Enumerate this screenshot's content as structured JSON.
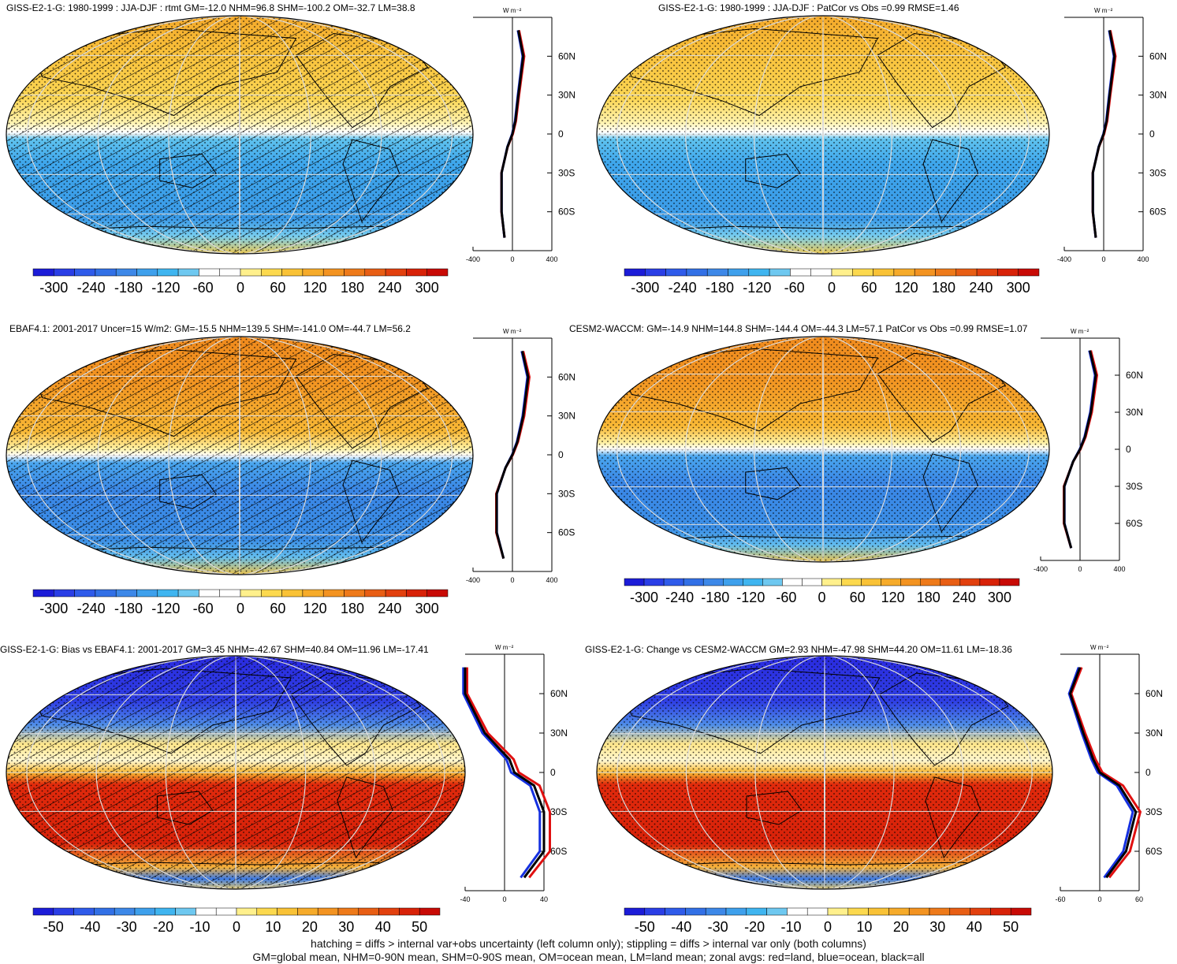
{
  "panels": [
    {
      "id": "p1",
      "title": "GISS-E2-1-G: 1980-1999 : JJA-DJF : rtmt GM=-12.0 NHM=96.8 SHM=-100.2 OM=-32.7 LM=38.8",
      "scheme": "rtmt",
      "hatch": true
    },
    {
      "id": "p2",
      "title": "GISS-E2-1-G: 1980-1999 : JJA-DJF : PatCor vs Obs =0.99 RMSE=1.46",
      "scheme": "rtmt",
      "hatch": false
    },
    {
      "id": "p3",
      "title": "EBAF4.1: 2001-2017 Uncer=15 W/m2: GM=-15.5 NHM=139.5 SHM=-141.0 OM=-44.7 LM=56.2",
      "scheme": "rtmt",
      "hatch": true
    },
    {
      "id": "p4",
      "title": "CESM2-WACCM: GM=-14.9 NHM=144.8 SHM=-144.4 OM=-44.3 LM=57.1 PatCor vs Obs =0.99 RMSE=1.07",
      "scheme": "rtmt",
      "hatch": false
    },
    {
      "id": "p5",
      "title": "GISS-E2-1-G: Bias vs EBAF4.1: 2001-2017 GM=3.45 NHM=-42.67 SHM=40.84 OM=11.96 LM=-17.41",
      "scheme": "bias",
      "hatch": true
    },
    {
      "id": "p6",
      "title": "GISS-E2-1-G: Change vs CESM2-WACCM GM=2.93 NHM=-47.98 SHM=44.20 OM=11.61 LM=-18.36",
      "scheme": "bias",
      "hatch": false
    }
  ],
  "units_label": "W m⁻²",
  "lat_ticks": [
    "60N",
    "30N",
    "0",
    "30S",
    "60S"
  ],
  "colorbars": {
    "rtmt": {
      "labels": [
        "-300",
        "-240",
        "-180",
        "-120",
        "-60",
        "0",
        "60",
        "120",
        "180",
        "240",
        "300"
      ],
      "colors": [
        "#1c1cd8",
        "#2a3ee6",
        "#2f5bea",
        "#3270e6",
        "#3d88e8",
        "#3ea0ec",
        "#3fb5f0",
        "#6ec8f0",
        "#ffffff",
        "#ffffff",
        "#fff08c",
        "#fcd94e",
        "#f9c236",
        "#f6ab2a",
        "#f39321",
        "#ee7a1a",
        "#e85e14",
        "#e2400e",
        "#d82208",
        "#c80a05"
      ],
      "zonal_ticks": [
        "-400",
        "0",
        "400"
      ]
    },
    "bias": {
      "labels": [
        "-50",
        "-40",
        "-30",
        "-20",
        "-10",
        "0",
        "10",
        "20",
        "30",
        "40",
        "50"
      ],
      "colors": [
        "#1c1cd8",
        "#2a3ee6",
        "#2f5bea",
        "#3270e6",
        "#3d88e8",
        "#3ea0ec",
        "#3fb5f0",
        "#6ec8f0",
        "#ffffff",
        "#ffffff",
        "#fff08c",
        "#fcd94e",
        "#f9c236",
        "#f6ab2a",
        "#f39321",
        "#ee7a1a",
        "#e85e14",
        "#e2400e",
        "#d82208",
        "#c80a05"
      ]
    }
  },
  "zonal_x_ticks": {
    "p1": [
      "-400",
      "0",
      "400"
    ],
    "p2": [
      "-400",
      "0",
      "400"
    ],
    "p3": [
      "-400",
      "0",
      "400"
    ],
    "p4": [
      "-400",
      "0",
      "400"
    ],
    "p5": [
      "-40",
      "0",
      "40"
    ],
    "p6": [
      "-60",
      "0",
      "60"
    ]
  },
  "footer": {
    "line1": "hatching = diffs > internal var+obs uncertainty (left column only); stippling = diffs > internal var only (both columns)",
    "line2": "GM=global mean, NHM=0-90N mean, SHM=0-90S mean, OM=ocean mean, LM=land mean; zonal avgs: red=land, blue=ocean, black=all"
  },
  "chart_data": [
    {
      "type": "heatmap",
      "title": "GISS-E2-1-G: 1980-1999 : JJA-DJF : rtmt GM=-12.0 NHM=96.8 SHM=-100.2 OM=-32.7 LM=38.8",
      "units": "W m-2",
      "colorbar": [
        -300,
        -240,
        -180,
        -120,
        -60,
        0,
        60,
        120,
        180,
        240,
        300
      ],
      "zonal_mean": {
        "lat": [
          80,
          60,
          30,
          10,
          0,
          -10,
          -30,
          -60,
          -80
        ],
        "all": [
          60,
          110,
          60,
          30,
          0,
          -50,
          -110,
          -110,
          -80
        ]
      }
    },
    {
      "type": "heatmap",
      "title": "GISS-E2-1-G: 1980-1999 : JJA-DJF : PatCor vs Obs =0.99 RMSE=1.46",
      "units": "W m-2",
      "colorbar": [
        -300,
        -240,
        -180,
        -120,
        -60,
        0,
        60,
        120,
        180,
        240,
        300
      ],
      "zonal_mean": {
        "lat": [
          80,
          60,
          30,
          10,
          0,
          -10,
          -30,
          -60,
          -80
        ],
        "all": [
          60,
          110,
          60,
          30,
          0,
          -50,
          -110,
          -110,
          -80
        ]
      }
    },
    {
      "type": "heatmap",
      "title": "EBAF4.1: 2001-2017 Uncer=15 W/m2: GM=-15.5 NHM=139.5 SHM=-141.0 OM=-44.7 LM=56.2",
      "units": "W m-2",
      "colorbar": [
        -300,
        -240,
        -180,
        -120,
        -60,
        0,
        60,
        120,
        180,
        240,
        300
      ],
      "zonal_mean": {
        "lat": [
          80,
          60,
          30,
          10,
          0,
          -10,
          -30,
          -60,
          -80
        ],
        "all": [
          100,
          160,
          110,
          50,
          0,
          -70,
          -160,
          -160,
          -90
        ]
      }
    },
    {
      "type": "heatmap",
      "title": "CESM2-WACCM: GM=-14.9 NHM=144.8 SHM=-144.4 OM=-44.3 LM=57.1 PatCor vs Obs =0.99 RMSE=1.07",
      "units": "W m-2",
      "colorbar": [
        -300,
        -240,
        -180,
        -120,
        -60,
        0,
        60,
        120,
        180,
        240,
        300
      ],
      "zonal_mean": {
        "lat": [
          80,
          60,
          30,
          10,
          0,
          -10,
          -30,
          -60,
          -80
        ],
        "all": [
          100,
          160,
          110,
          50,
          0,
          -70,
          -160,
          -160,
          -90
        ]
      }
    },
    {
      "type": "heatmap",
      "title": "GISS-E2-1-G: Bias vs EBAF4.1: 2001-2017 GM=3.45 NHM=-42.67 SHM=40.84 OM=11.96 LM=-17.41",
      "units": "W m-2",
      "colorbar": [
        -50,
        -40,
        -30,
        -20,
        -10,
        0,
        10,
        20,
        30,
        40,
        50
      ],
      "zonal_mean": {
        "lat": [
          80,
          60,
          30,
          10,
          0,
          -10,
          -30,
          -60,
          -80
        ],
        "all": [
          -40,
          -40,
          -20,
          5,
          10,
          30,
          40,
          40,
          20
        ]
      }
    },
    {
      "type": "heatmap",
      "title": "GISS-E2-1-G: Change vs CESM2-WACCM GM=2.93 NHM=-47.98 SHM=44.20 OM=11.61 LM=-18.36",
      "units": "W m-2",
      "colorbar": [
        -50,
        -40,
        -30,
        -20,
        -10,
        0,
        10,
        20,
        30,
        40,
        50
      ],
      "zonal_mean": {
        "lat": [
          80,
          60,
          30,
          10,
          0,
          -10,
          -30,
          -60,
          -80
        ],
        "all": [
          -30,
          -45,
          -25,
          -10,
          0,
          30,
          55,
          40,
          10
        ]
      }
    }
  ]
}
